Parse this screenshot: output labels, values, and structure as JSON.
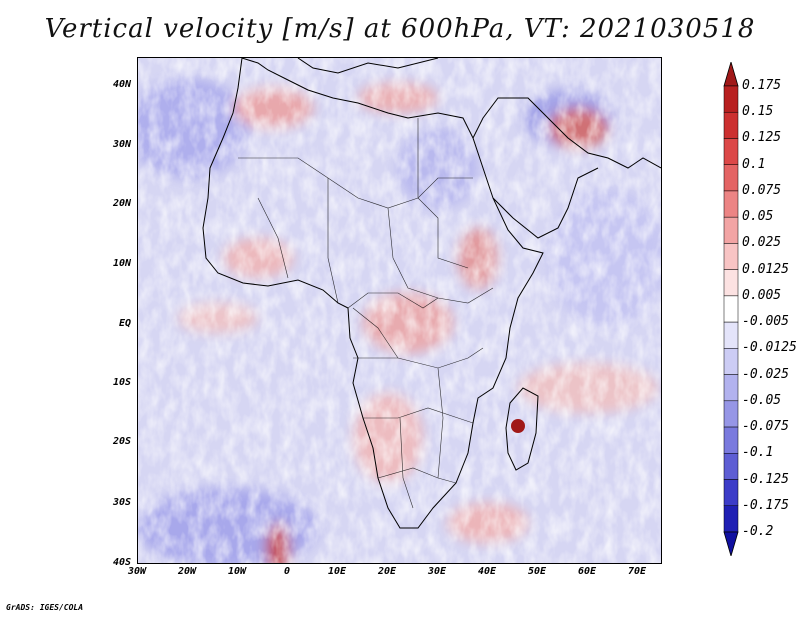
{
  "title": "Vertical velocity [m/s] at 600hPa, VT: 2021030518",
  "credit": "GrADS: IGES/COLA",
  "map": {
    "lat_labels": [
      "40N",
      "30N",
      "20N",
      "10N",
      "EQ",
      "10S",
      "20S",
      "30S",
      "40S"
    ],
    "lon_labels": [
      "30W",
      "20W",
      "10W",
      "0",
      "10E",
      "20E",
      "30E",
      "40E",
      "50E",
      "60E",
      "70E"
    ],
    "lat_range": [
      -40,
      45
    ],
    "lon_range": [
      -30,
      75
    ]
  },
  "colorbar": {
    "labels": [
      "0.175",
      "0.15",
      "0.125",
      "0.1",
      "0.075",
      "0.05",
      "0.025",
      "0.0125",
      "0.005",
      "-0.005",
      "-0.0125",
      "-0.025",
      "-0.05",
      "-0.075",
      "-0.1",
      "-0.125",
      "-0.175",
      "-0.2"
    ],
    "colors": [
      "#a01818",
      "#b82020",
      "#cc3030",
      "#dc4848",
      "#e46464",
      "#ec8484",
      "#f2a4a4",
      "#f8c4c4",
      "#fce2e2",
      "#ffffff",
      "#e4e4fa",
      "#ccccf4",
      "#b2b2ee",
      "#9696e6",
      "#7a7ade",
      "#5e5ed4",
      "#3c3cc8",
      "#2020b4",
      "#1010a0"
    ]
  },
  "colors": {
    "background": "#ffffff",
    "land_outline": "#000000",
    "field_base": "#d8d8f4"
  }
}
